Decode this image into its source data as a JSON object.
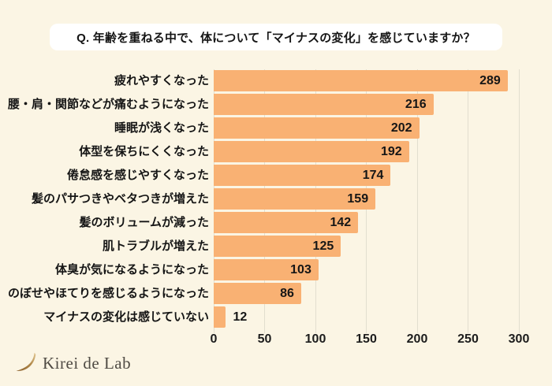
{
  "page": {
    "background": "#FBF5E4"
  },
  "title": {
    "label": "Q. 年齢を重ねる中で、体について「マイナスの変化」を感じていますか？"
  },
  "chart_data": {
    "type": "bar",
    "orientation": "horizontal",
    "title": "Q. 年齢を重ねる中で、体について「マイナスの変化」を感じていますか？",
    "categories": [
      "疲れやすくなった",
      "腰・肩・関節などが痛むようになった",
      "睡眠が浅くなった",
      "体型を保ちにくくなった",
      "倦怠感を感じやすくなった",
      "髪のパサつきやベタつきが増えた",
      "髪のボリュームが減った",
      "肌トラブルが増えた",
      "体臭が気になるようになった",
      "のぼせやほてりを感じるようになった",
      "マイナスの変化は感じていない"
    ],
    "values": [
      289,
      216,
      202,
      192,
      174,
      159,
      142,
      125,
      103,
      86,
      12
    ],
    "xlim": [
      0,
      300
    ],
    "xticks": [
      0,
      50,
      100,
      150,
      200,
      250,
      300
    ],
    "xlabel": "",
    "ylabel": "",
    "grid": true,
    "legend": false,
    "value_labels": true
  },
  "footer": {
    "logo_text": "Kirei de Lab",
    "logo_icon": "crescent-lash-icon"
  },
  "colors": {
    "background": "#FBF5E4",
    "title_box": "#FFFFFF",
    "bar": "#F9B173",
    "gridline": "#E2DECF",
    "text": "#151515",
    "logo_text": "#4F4B44",
    "logo_gold_dark": "#8A5F2C",
    "logo_gold_light": "#CDA96F"
  }
}
